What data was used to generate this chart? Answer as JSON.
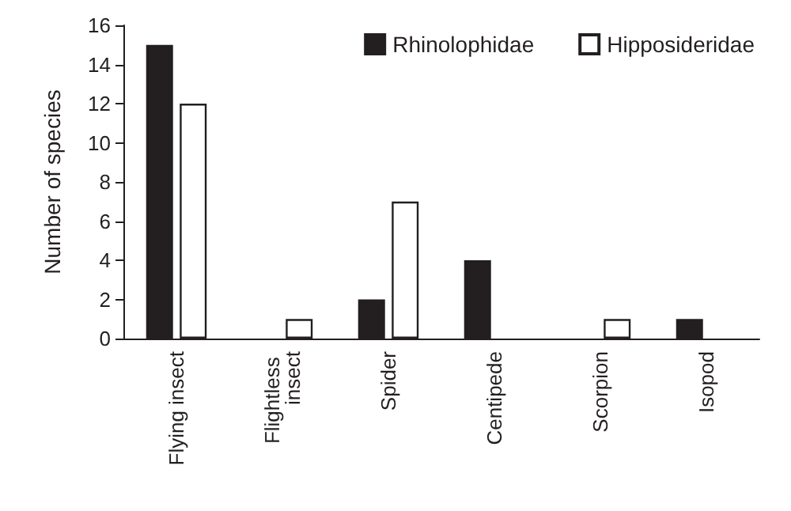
{
  "chart_data": {
    "type": "bar",
    "ylabel": "Number of species",
    "categories": [
      "Flying insect",
      "Flightless insect",
      "Spider",
      "Centipede",
      "Scorpion",
      "Isopod"
    ],
    "series": [
      {
        "name": "Rhinolophidae",
        "color": "#231f20",
        "values": [
          15,
          0,
          2,
          4,
          0,
          1
        ]
      },
      {
        "name": "Hipposideridae",
        "color": "#ffffff",
        "values": [
          12,
          1,
          7,
          0,
          1,
          0
        ]
      }
    ],
    "ylim": [
      0,
      16
    ],
    "yticks": [
      0,
      2,
      4,
      6,
      8,
      10,
      12,
      14,
      16
    ],
    "grid": false,
    "legend": "top right"
  }
}
